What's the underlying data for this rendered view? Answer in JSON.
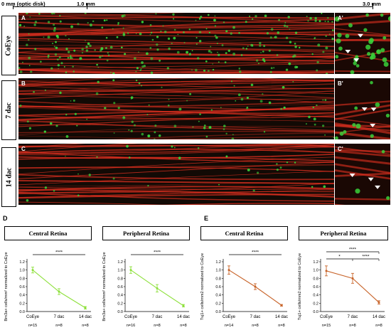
{
  "scale": {
    "label_start": "0 mm (optic disk)",
    "label_mid": "1.0 mm",
    "label_end": "3.0 mm"
  },
  "rows": [
    {
      "label": "CoEye",
      "panel": "A",
      "inset": "A'",
      "green_density": "high"
    },
    {
      "label": "7 dac",
      "panel": "B",
      "inset": "B'",
      "green_density": "medium"
    },
    {
      "label": "14 dac",
      "panel": "C",
      "inset": "C'",
      "green_density": "low"
    }
  ],
  "sections": {
    "brn": "D",
    "tuj": "E"
  },
  "colors": {
    "brn3a": "#8ee03c",
    "tuj1": "#c8642a",
    "axon": "#e03020",
    "cell": "#39d13a",
    "background": "#120a05"
  },
  "chart_data": [
    {
      "type": "line",
      "title": "Central Retina",
      "ylabel": "Brn3a+ cells/mm² normalized to CoEye",
      "categories": [
        "CoEye",
        "7 dac",
        "14 dac"
      ],
      "n_labels": [
        "n=15",
        "n=8",
        "n=8"
      ],
      "yticks": [
        "0.0",
        "0.2",
        "0.4",
        "0.6",
        "0.8",
        "1.0",
        "1.2"
      ],
      "ylim": [
        0,
        1.2
      ],
      "series": [
        {
          "values": [
            1.0,
            0.48,
            0.09
          ],
          "errors": [
            0.07,
            0.07,
            0.03
          ]
        }
      ],
      "color": "#8ee03c",
      "significance": [
        {
          "from": 0,
          "to": 2,
          "label": "****"
        }
      ]
    },
    {
      "type": "line",
      "title": "Peripheral Retina",
      "ylabel": "Brn3a+ cells/mm² normalized to CoEye",
      "categories": [
        "CoEye",
        "7 dac",
        "14 dac"
      ],
      "n_labels": [
        "n=16",
        "n=8",
        "n=8"
      ],
      "yticks": [
        "0.0",
        "0.2",
        "0.4",
        "0.6",
        "0.8",
        "1.0",
        "1.2"
      ],
      "ylim": [
        0,
        1.2
      ],
      "series": [
        {
          "values": [
            1.0,
            0.56,
            0.14
          ],
          "errors": [
            0.08,
            0.09,
            0.03
          ]
        }
      ],
      "color": "#8ee03c",
      "significance": [
        {
          "from": 0,
          "to": 2,
          "label": "****"
        }
      ]
    },
    {
      "type": "line",
      "title": "Central Retina",
      "ylabel": "Tuj1+ cells/mm2 normalized to CoEye",
      "categories": [
        "CoEye",
        "7 dac",
        "14 dac"
      ],
      "n_labels": [
        "n=14",
        "n=8",
        "n=8"
      ],
      "yticks": [
        "0.0",
        "0.2",
        "0.4",
        "0.6",
        "0.8",
        "1.0",
        "1.2"
      ],
      "ylim": [
        0,
        1.2
      ],
      "series": [
        {
          "values": [
            1.0,
            0.6,
            0.15
          ],
          "errors": [
            0.1,
            0.07,
            0.02
          ]
        }
      ],
      "color": "#c8642a",
      "significance": [
        {
          "from": 0,
          "to": 2,
          "label": "****"
        }
      ]
    },
    {
      "type": "line",
      "title": "Peripheral Retina",
      "ylabel": "Tuj1+ cells/mm2 normalized to CoEye",
      "categories": [
        "CoEye",
        "7 dac",
        "14 dac"
      ],
      "n_labels": [
        "n=15",
        "n=8",
        "n=8"
      ],
      "yticks": [
        "0.0",
        "0.2",
        "0.4",
        "0.6",
        "0.8",
        "1.0",
        "1.2"
      ],
      "ylim": [
        0,
        1.2
      ],
      "series": [
        {
          "values": [
            0.98,
            0.8,
            0.22
          ],
          "errors": [
            0.12,
            0.12,
            0.04
          ]
        }
      ],
      "color": "#c8642a",
      "significance": [
        {
          "from": 0,
          "to": 2,
          "label": "****"
        },
        {
          "from": 0,
          "to": 1,
          "label": "*"
        },
        {
          "from": 1,
          "to": 2,
          "label": "****"
        }
      ]
    }
  ]
}
